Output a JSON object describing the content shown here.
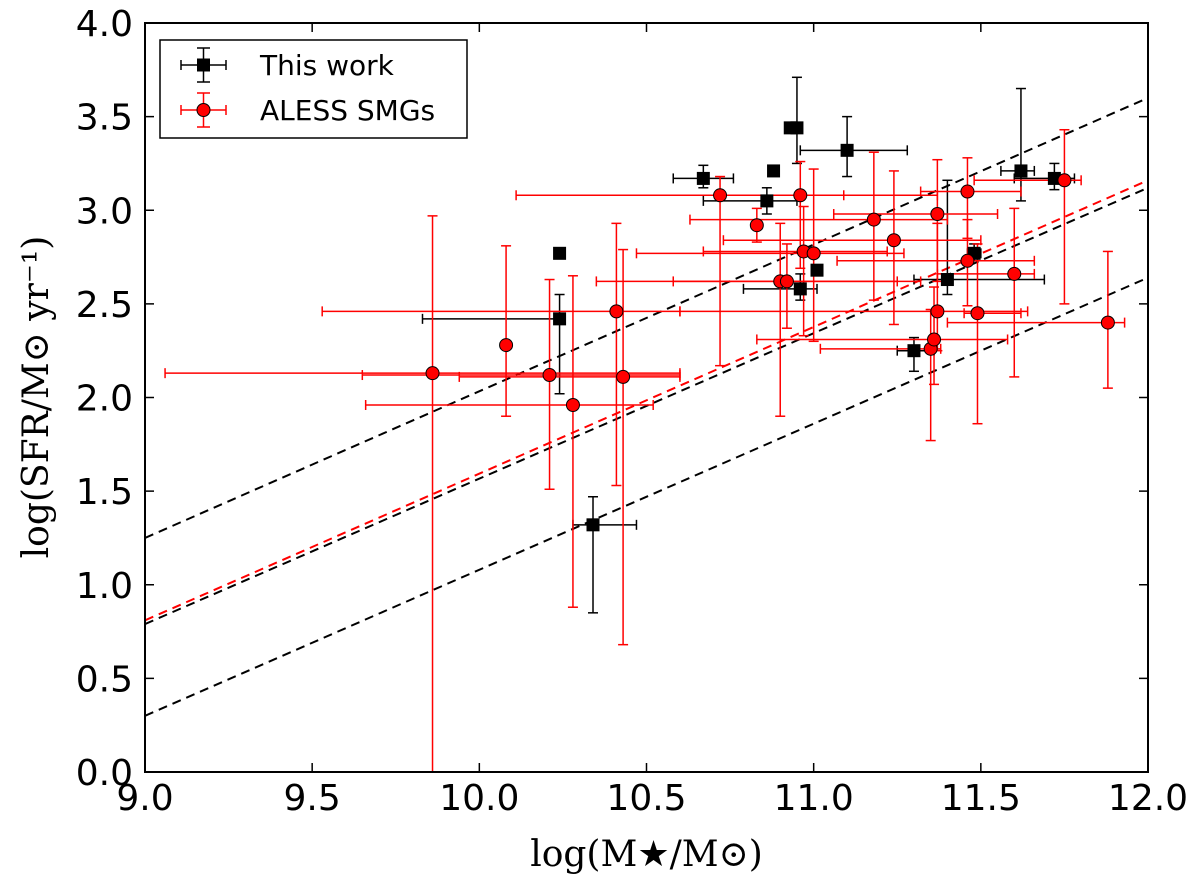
{
  "chart_data": {
    "type": "scatter",
    "xlabel": "log(M★/M⊙)",
    "ylabel": "log(SFR/M⊙ yr⁻¹)",
    "xlim": [
      9.0,
      12.0
    ],
    "ylim": [
      0.0,
      4.0
    ],
    "xticks": [
      "9.0",
      "9.5",
      "10.0",
      "10.5",
      "11.0",
      "11.5",
      "12.0"
    ],
    "yticks": [
      "0.0",
      "0.5",
      "1.0",
      "1.5",
      "2.0",
      "2.5",
      "3.0",
      "3.5",
      "4.0"
    ],
    "legend_position": "top-left",
    "series": [
      {
        "name": "This work",
        "color": "#000000",
        "marker": "square",
        "points": [
          {
            "x": 10.24,
            "y": 2.77
          },
          {
            "x": 10.24,
            "y": 2.42,
            "xlo": 9.83,
            "xhi": 10.24,
            "ylo": 2.02,
            "yhi": 2.55
          },
          {
            "x": 10.34,
            "y": 1.32,
            "xlo": 10.28,
            "xhi": 10.47,
            "ylo": 0.85,
            "yhi": 1.47
          },
          {
            "x": 10.67,
            "y": 3.17,
            "xlo": 10.58,
            "xhi": 10.76,
            "ylo": 3.12,
            "yhi": 3.24
          },
          {
            "x": 10.86,
            "y": 3.05,
            "xlo": 10.67,
            "xhi": 10.95,
            "ylo": 2.98,
            "yhi": 3.12
          },
          {
            "x": 10.88,
            "y": 3.21
          },
          {
            "x": 10.93,
            "y": 3.44
          },
          {
            "x": 10.95,
            "y": 3.44,
            "ylo": 3.25,
            "yhi": 3.71
          },
          {
            "x": 10.96,
            "y": 2.58,
            "xlo": 10.79,
            "xhi": 11.01,
            "ylo": 2.52,
            "yhi": 2.66
          },
          {
            "x": 11.01,
            "y": 2.68
          },
          {
            "x": 11.1,
            "y": 3.32,
            "xlo": 10.96,
            "xhi": 11.28,
            "ylo": 3.18,
            "yhi": 3.5
          },
          {
            "x": 11.3,
            "y": 2.25,
            "xlo": 11.25,
            "xhi": 11.36,
            "ylo": 2.14,
            "yhi": 2.32
          },
          {
            "x": 11.4,
            "y": 2.63,
            "xlo": 11.3,
            "xhi": 11.69,
            "ylo": 2.55,
            "yhi": 3.16
          },
          {
            "x": 11.48,
            "y": 2.77,
            "xlo": 11.46,
            "xhi": 11.5,
            "ylo": 2.73,
            "yhi": 2.82
          },
          {
            "x": 11.62,
            "y": 3.21,
            "xlo": 11.56,
            "xhi": 11.66,
            "ylo": 3.05,
            "yhi": 3.65
          },
          {
            "x": 11.72,
            "y": 3.17,
            "xlo": 11.6,
            "xhi": 11.78,
            "ylo": 3.11,
            "yhi": 3.25
          }
        ]
      },
      {
        "name": "ALESS SMGs",
        "color": "#ff0000",
        "marker": "circle",
        "points": [
          {
            "x": 9.86,
            "y": 2.13,
            "xlo": 9.06,
            "xhi": 10.6,
            "ylo": 0.0,
            "yhi": 2.97
          },
          {
            "x": 10.08,
            "y": 2.28,
            "ylo": 1.9,
            "yhi": 2.81
          },
          {
            "x": 10.21,
            "y": 2.12,
            "xlo": 9.65,
            "xhi": 10.6,
            "ylo": 1.51,
            "yhi": 2.63
          },
          {
            "x": 10.28,
            "y": 1.96,
            "xlo": 9.66,
            "xhi": 10.52,
            "ylo": 0.88,
            "yhi": 2.65
          },
          {
            "x": 10.41,
            "y": 2.46,
            "xlo": 9.53,
            "xhi": 10.6,
            "ylo": 1.53,
            "yhi": 2.93
          },
          {
            "x": 10.43,
            "y": 2.11,
            "xlo": 9.94,
            "xhi": 10.6,
            "ylo": 0.68,
            "yhi": 2.79
          },
          {
            "x": 10.72,
            "y": 3.08,
            "xlo": 10.11,
            "xhi": 11.09,
            "ylo": 2.17,
            "yhi": 3.18
          },
          {
            "x": 10.83,
            "y": 2.92,
            "ylo": 2.83,
            "yhi": 3.01
          },
          {
            "x": 10.9,
            "y": 2.62,
            "xlo": 10.35,
            "xhi": 11.32,
            "ylo": 1.9,
            "yhi": 2.93
          },
          {
            "x": 10.92,
            "y": 2.62,
            "xlo": 10.58,
            "xhi": 11.25,
            "ylo": 2.37,
            "yhi": 2.82
          },
          {
            "x": 10.96,
            "y": 3.08,
            "xlo": 10.72,
            "xhi": 11.37,
            "ylo": 2.69,
            "yhi": 3.26
          },
          {
            "x": 10.97,
            "y": 2.78,
            "xlo": 10.67,
            "xhi": 11.22,
            "ylo": 2.33,
            "yhi": 3.02
          },
          {
            "x": 11.0,
            "y": 2.77,
            "xlo": 10.47,
            "xhi": 11.27,
            "ylo": 2.3,
            "yhi": 3.22
          },
          {
            "x": 11.18,
            "y": 2.95,
            "xlo": 10.63,
            "xhi": 11.4,
            "ylo": 2.52,
            "yhi": 3.31
          },
          {
            "x": 11.24,
            "y": 2.84,
            "xlo": 10.73,
            "xhi": 11.5,
            "ylo": 2.39,
            "yhi": 3.21
          },
          {
            "x": 11.35,
            "y": 2.26,
            "xlo": 11.02,
            "xhi": 11.38,
            "ylo": 1.77,
            "yhi": 2.47
          },
          {
            "x": 11.36,
            "y": 2.31,
            "xlo": 10.83,
            "xhi": 11.58,
            "ylo": 2.07,
            "yhi": 2.59
          },
          {
            "x": 11.37,
            "y": 2.98,
            "xlo": 11.06,
            "xhi": 11.55,
            "ylo": 2.62,
            "yhi": 3.27
          },
          {
            "x": 11.37,
            "y": 2.46,
            "xlo": 10.6,
            "xhi": 11.64,
            "ylo": 2.25,
            "yhi": 2.93
          },
          {
            "x": 11.46,
            "y": 2.73,
            "xlo": 11.07,
            "xhi": 11.66,
            "ylo": 2.49,
            "yhi": 2.95
          },
          {
            "x": 11.46,
            "y": 3.1,
            "xlo": 11.32,
            "xhi": 11.62,
            "ylo": 2.85,
            "yhi": 3.28
          },
          {
            "x": 11.49,
            "y": 2.45,
            "xlo": 11.45,
            "xhi": 11.62,
            "ylo": 1.86,
            "yhi": 2.82
          },
          {
            "x": 11.6,
            "y": 2.66,
            "xlo": 11.37,
            "xhi": 11.66,
            "ylo": 2.11,
            "yhi": 3.01
          },
          {
            "x": 11.75,
            "y": 3.16,
            "xlo": 11.48,
            "xhi": 11.8,
            "ylo": 2.5,
            "yhi": 3.43
          },
          {
            "x": 11.88,
            "y": 2.4,
            "xlo": 11.4,
            "xhi": 11.93,
            "ylo": 2.05,
            "yhi": 2.78
          }
        ]
      }
    ],
    "reference_lines": [
      {
        "color": "#000000",
        "style": "dashed",
        "x": [
          9.0,
          12.0
        ],
        "y": [
          1.25,
          3.6
        ]
      },
      {
        "color": "#000000",
        "style": "dashed",
        "x": [
          9.0,
          12.0
        ],
        "y": [
          0.79,
          3.12
        ]
      },
      {
        "color": "#ff0000",
        "style": "dashed",
        "x": [
          9.0,
          12.0
        ],
        "y": [
          0.81,
          3.16
        ]
      },
      {
        "color": "#000000",
        "style": "dashed",
        "x": [
          9.0,
          12.0
        ],
        "y": [
          0.3,
          2.64
        ]
      }
    ]
  }
}
